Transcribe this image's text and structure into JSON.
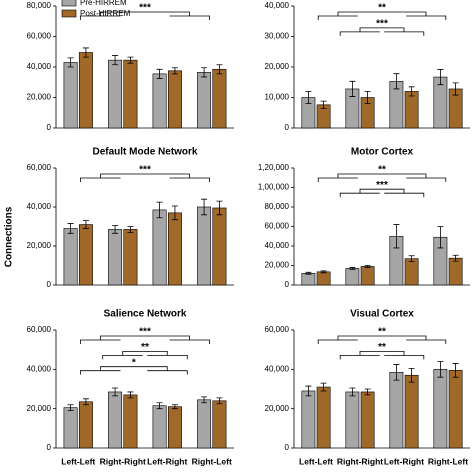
{
  "shared": {
    "y_label": "Connections",
    "categories": [
      "Left-Left",
      "Right-Right",
      "Left-Right",
      "Right-Left"
    ],
    "legend": [
      {
        "name": "Pre-HIRREM",
        "color": "#a6a6a6"
      },
      {
        "name": "Post-HIRREM",
        "color": "#a0692a"
      }
    ]
  },
  "chart_data": [
    {
      "type": "bar",
      "ylim": [
        0,
        80000
      ],
      "yticks": [
        0,
        {
          "value": 20000,
          "label": "20,000"
        },
        {
          "value": 40000,
          "label": "40,000"
        },
        {
          "value": 60000,
          "label": "60,000"
        },
        {
          "value": 80000,
          "label": "80,000"
        }
      ],
      "series": [
        {
          "values": [
            43000,
            44500,
            35500,
            36500
          ],
          "errors": [
            3000,
            3000,
            3000,
            3000
          ]
        },
        {
          "values": [
            49500,
            44500,
            37500,
            38500
          ],
          "errors": [
            3000,
            2000,
            2000,
            3000
          ]
        }
      ],
      "annotations": [
        "***"
      ]
    },
    {
      "type": "bar",
      "ylim": [
        0,
        40000
      ],
      "yticks": [
        0,
        {
          "value": 10000,
          "label": "10,000"
        },
        {
          "value": 20000,
          "label": "20,000"
        },
        {
          "value": 30000,
          "label": "30,000"
        },
        {
          "value": 40000,
          "label": "40,000"
        }
      ],
      "series": [
        {
          "values": [
            10000,
            12800,
            15300,
            16700
          ],
          "errors": [
            2000,
            2500,
            2500,
            2500
          ]
        },
        {
          "values": [
            7600,
            10000,
            12000,
            12800
          ],
          "errors": [
            1200,
            2000,
            1500,
            2000
          ]
        }
      ],
      "annotations": [
        "**",
        "***"
      ]
    },
    {
      "type": "bar",
      "title": "Default Mode Network",
      "ylim": [
        0,
        60000
      ],
      "yticks": [
        0,
        {
          "value": 20000,
          "label": "20,000"
        },
        {
          "value": 40000,
          "label": "40,000"
        },
        {
          "value": 60000,
          "label": "60,000"
        }
      ],
      "series": [
        {
          "values": [
            29000,
            28500,
            38500,
            40000
          ],
          "errors": [
            2500,
            2000,
            4000,
            4000
          ]
        },
        {
          "values": [
            31000,
            28500,
            37000,
            39500
          ],
          "errors": [
            2000,
            1500,
            3500,
            3500
          ]
        }
      ],
      "annotations": [
        "***"
      ]
    },
    {
      "type": "bar",
      "title": "Motor Cortex",
      "ylim": [
        0,
        120000
      ],
      "yticks": [
        0,
        {
          "value": 20000,
          "label": "20,000"
        },
        {
          "value": 40000,
          "label": "40,000"
        },
        {
          "value": 60000,
          "label": "60,000"
        },
        {
          "value": 80000,
          "label": "80,000"
        },
        {
          "value": 100000,
          "label": "1,00,000"
        },
        {
          "value": 120000,
          "label": "1,20,000"
        }
      ],
      "series": [
        {
          "values": [
            12000,
            17000,
            50000,
            49000
          ],
          "errors": [
            1000,
            1000,
            12000,
            11000
          ]
        },
        {
          "values": [
            13500,
            19000,
            27000,
            27500
          ],
          "errors": [
            1000,
            1000,
            3000,
            3000
          ]
        }
      ],
      "annotations": [
        "**",
        "***"
      ]
    },
    {
      "type": "bar",
      "title": "Salience Network",
      "ylim": [
        0,
        60000
      ],
      "yticks": [
        0,
        {
          "value": 20000,
          "label": "20,000"
        },
        {
          "value": 40000,
          "label": "40,000"
        },
        {
          "value": 60000,
          "label": "60,000"
        }
      ],
      "series": [
        {
          "values": [
            20500,
            28500,
            21500,
            24500
          ],
          "errors": [
            1500,
            2000,
            1500,
            1500
          ]
        },
        {
          "values": [
            23500,
            27000,
            21000,
            24000
          ],
          "errors": [
            1500,
            1500,
            1000,
            1500
          ]
        }
      ],
      "annotations": [
        "***",
        "**",
        "*"
      ]
    },
    {
      "type": "bar",
      "title": "Visual Cortex",
      "ylim": [
        0,
        60000
      ],
      "yticks": [
        0,
        {
          "value": 20000,
          "label": "20,000"
        },
        {
          "value": 40000,
          "label": "40,000"
        },
        {
          "value": 60000,
          "label": "60,000"
        }
      ],
      "series": [
        {
          "values": [
            29000,
            28500,
            38500,
            40000
          ],
          "errors": [
            2500,
            2000,
            4000,
            4000
          ]
        },
        {
          "values": [
            31000,
            28500,
            37000,
            39500
          ],
          "errors": [
            2000,
            1500,
            3500,
            3500
          ]
        }
      ],
      "annotations": [
        "**",
        "**"
      ]
    }
  ]
}
